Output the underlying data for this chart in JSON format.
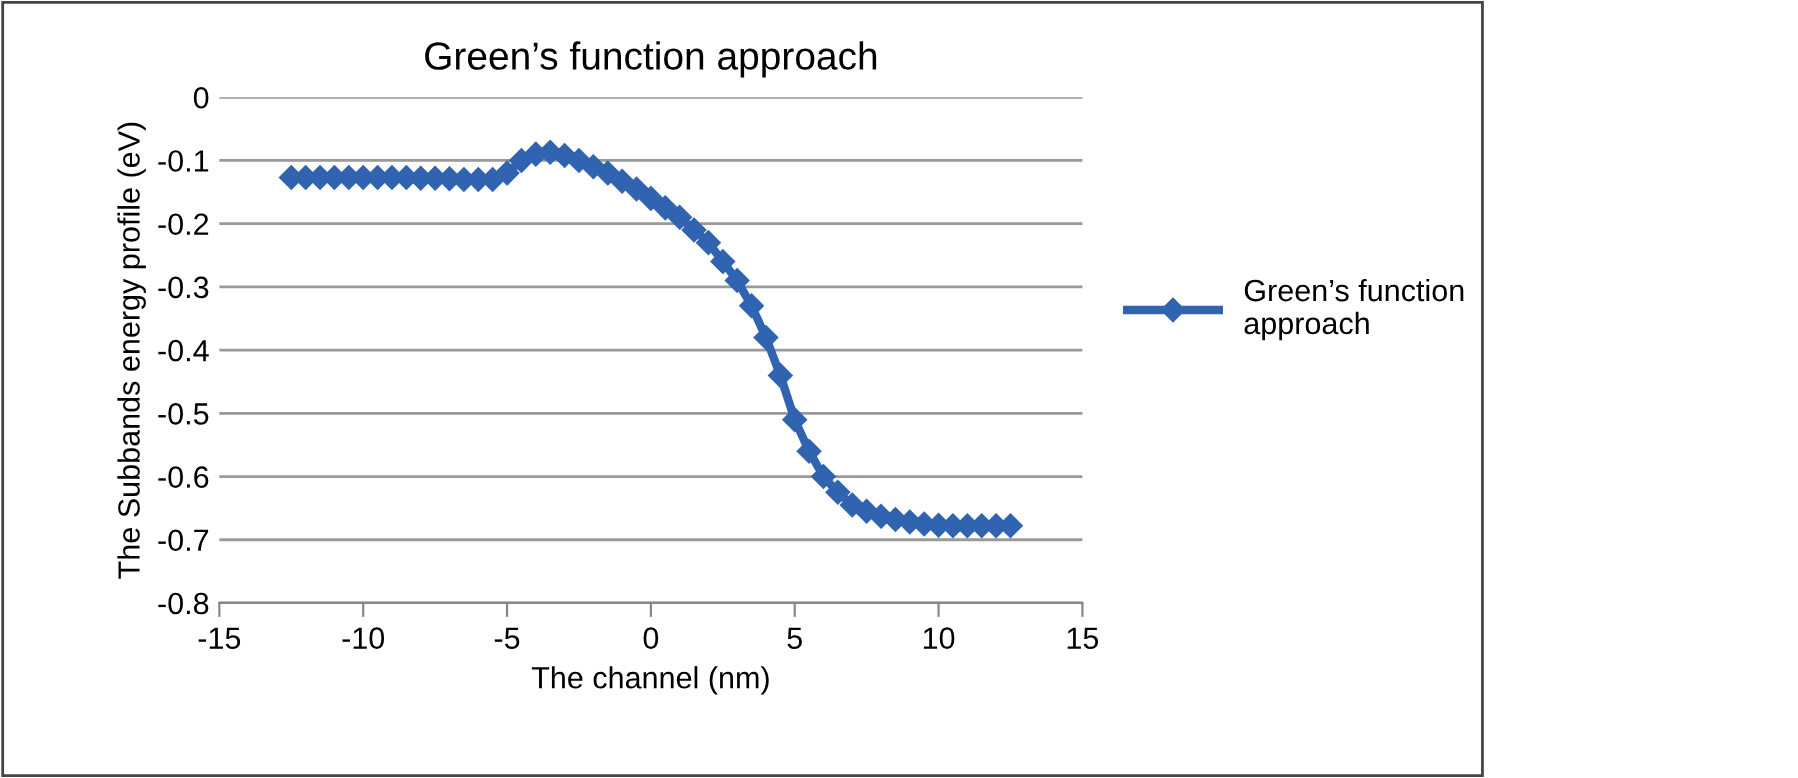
{
  "chart_data": {
    "type": "line",
    "title": "Green’s function approach",
    "xlabel": "The channel (nm)",
    "ylabel": "The Subbands energy profile (eV)",
    "x": [
      -12.5,
      -12,
      -11.5,
      -11,
      -10.5,
      -10,
      -9.5,
      -9,
      -8.5,
      -8,
      -7.5,
      -7,
      -6.5,
      -6,
      -5.5,
      -5,
      -4.5,
      -4,
      -3.5,
      -3,
      -2.5,
      -2,
      -1.5,
      -1,
      -0.5,
      0,
      0.5,
      1,
      1.5,
      2,
      2.5,
      3,
      3.5,
      4,
      4.5,
      5,
      5.5,
      6,
      6.5,
      7,
      7.5,
      8,
      8.5,
      9,
      9.5,
      10,
      10.5,
      11,
      11.5,
      12,
      12.5
    ],
    "series": [
      {
        "name": "Green’s function approach",
        "color": "#3063b0",
        "values": [
          -0.127,
          -0.127,
          -0.127,
          -0.127,
          -0.127,
          -0.127,
          -0.127,
          -0.127,
          -0.127,
          -0.128,
          -0.128,
          -0.129,
          -0.13,
          -0.13,
          -0.13,
          -0.12,
          -0.1,
          -0.09,
          -0.087,
          -0.092,
          -0.1,
          -0.11,
          -0.12,
          -0.133,
          -0.145,
          -0.16,
          -0.175,
          -0.19,
          -0.21,
          -0.23,
          -0.26,
          -0.29,
          -0.33,
          -0.38,
          -0.44,
          -0.51,
          -0.56,
          -0.6,
          -0.625,
          -0.645,
          -0.655,
          -0.663,
          -0.668,
          -0.672,
          -0.675,
          -0.677,
          -0.678,
          -0.678,
          -0.678,
          -0.678,
          -0.678
        ]
      }
    ],
    "xlim": [
      -15,
      15
    ],
    "xticks": [
      -15,
      -10,
      -5,
      0,
      5,
      10,
      15
    ],
    "ylim": [
      -0.8,
      0
    ],
    "yticks": [
      -0.8,
      -0.7,
      -0.6,
      -0.5,
      -0.4,
      -0.3,
      -0.2,
      -0.1,
      0
    ],
    "grid": "y",
    "legend": "right",
    "marker": "diamond",
    "line_style": "solid"
  }
}
